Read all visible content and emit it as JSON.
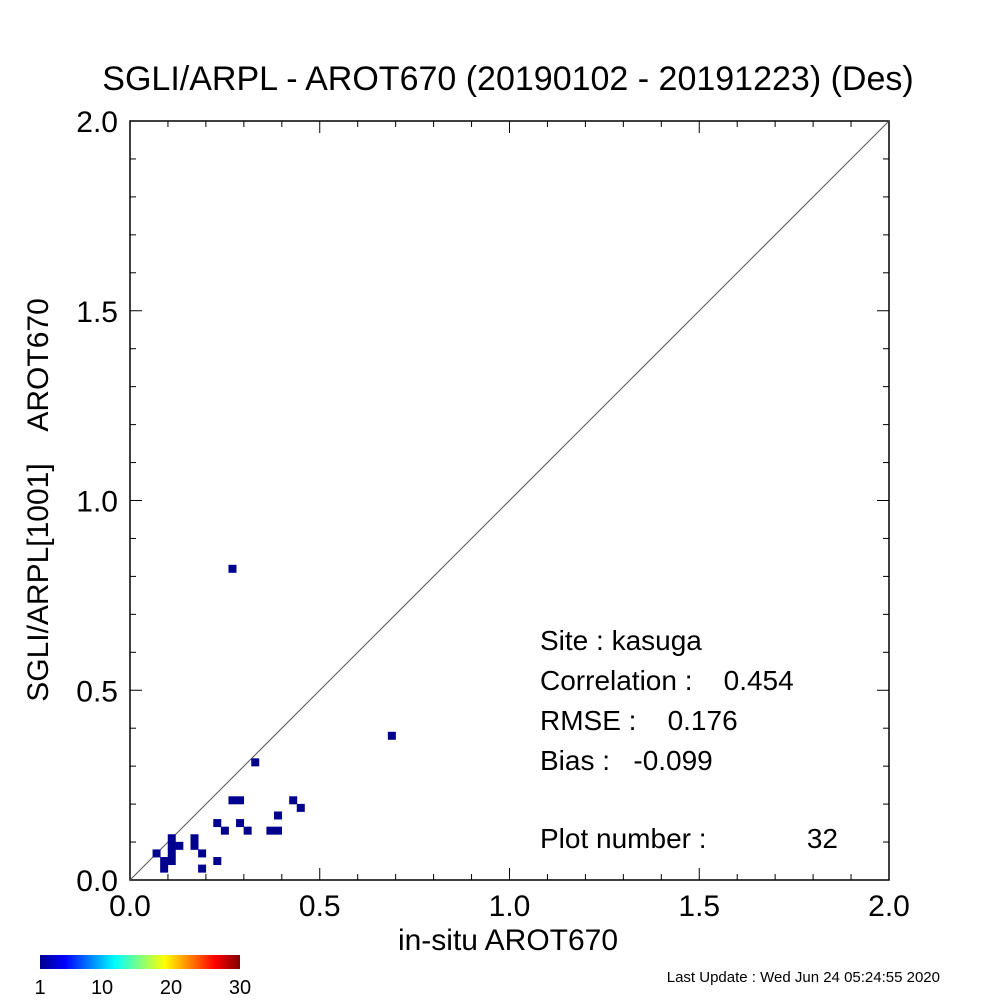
{
  "chart_data": {
    "type": "scatter",
    "title": "SGLI/ARPL - AROT670 (20190102 - 20191223) (Des)",
    "xlabel": "in-situ AROT670",
    "ylabel": "SGLI/ARPL[1001]    AROT670",
    "xlim": [
      0,
      2
    ],
    "ylim": [
      0,
      2
    ],
    "x_ticks": [
      "0.0",
      "0.5",
      "1.0",
      "1.5",
      "2.0"
    ],
    "y_ticks": [
      "0.0",
      "0.5",
      "1.0",
      "1.5",
      "2.0"
    ],
    "reference_line": "1:1",
    "grid": false,
    "point_color": "#00008f",
    "points": [
      {
        "x": 0.07,
        "y": 0.07
      },
      {
        "x": 0.09,
        "y": 0.05
      },
      {
        "x": 0.09,
        "y": 0.03
      },
      {
        "x": 0.11,
        "y": 0.11
      },
      {
        "x": 0.11,
        "y": 0.09
      },
      {
        "x": 0.11,
        "y": 0.07
      },
      {
        "x": 0.11,
        "y": 0.05
      },
      {
        "x": 0.13,
        "y": 0.09
      },
      {
        "x": 0.17,
        "y": 0.11
      },
      {
        "x": 0.17,
        "y": 0.09
      },
      {
        "x": 0.19,
        "y": 0.07
      },
      {
        "x": 0.19,
        "y": 0.03
      },
      {
        "x": 0.23,
        "y": 0.15
      },
      {
        "x": 0.23,
        "y": 0.05
      },
      {
        "x": 0.25,
        "y": 0.13
      },
      {
        "x": 0.27,
        "y": 0.21
      },
      {
        "x": 0.27,
        "y": 0.82
      },
      {
        "x": 0.29,
        "y": 0.21
      },
      {
        "x": 0.29,
        "y": 0.15
      },
      {
        "x": 0.31,
        "y": 0.13
      },
      {
        "x": 0.33,
        "y": 0.31
      },
      {
        "x": 0.37,
        "y": 0.13
      },
      {
        "x": 0.39,
        "y": 0.17
      },
      {
        "x": 0.39,
        "y": 0.13
      },
      {
        "x": 0.43,
        "y": 0.21
      },
      {
        "x": 0.45,
        "y": 0.19
      },
      {
        "x": 0.69,
        "y": 0.38
      }
    ],
    "stats": {
      "site": "Site : kasuga",
      "correlation": "Correlation :    0.454",
      "rmse": "RMSE :    0.176",
      "bias": "Bias :   -0.099",
      "plot_number": "Plot number :",
      "plot_number_value": "32"
    },
    "colorbar": {
      "ticks": [
        "1",
        "10",
        "20",
        "30"
      ],
      "colors": [
        "#00008f",
        "#0000ff",
        "#0080ff",
        "#00ffff",
        "#80ff80",
        "#ffff00",
        "#ff8000",
        "#ff0000",
        "#800000"
      ]
    },
    "footer": "Last Update : Wed Jun 24 05:24:55 2020"
  }
}
